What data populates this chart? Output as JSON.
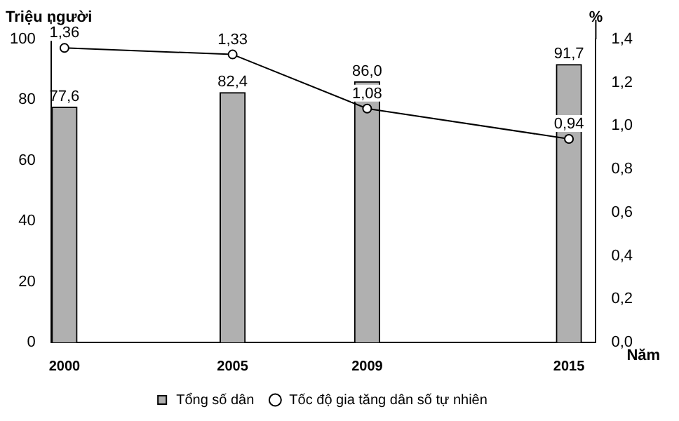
{
  "chart_data": {
    "type": "bar",
    "xlabel": "Năm",
    "ylabel": "Triệu người",
    "y2label": "%",
    "x": [
      2000,
      2005,
      2009,
      2015
    ],
    "xlim": [
      1999.6,
      2015.8
    ],
    "xticks": [
      2000,
      2005,
      2009,
      2015
    ],
    "ylim": [
      0,
      100
    ],
    "yticks": [
      0,
      20,
      40,
      60,
      80,
      100
    ],
    "y2lim": [
      0,
      1.4
    ],
    "y2ticks": [
      {
        "value": 0,
        "label": "0,0"
      },
      {
        "value": 0.2,
        "label": "0,2"
      },
      {
        "value": 0.4,
        "label": "0,4"
      },
      {
        "value": 0.6,
        "label": "0,6"
      },
      {
        "value": 0.8,
        "label": "0,8"
      },
      {
        "value": 1,
        "label": "1,0"
      },
      {
        "value": 1.2,
        "label": "1,2"
      },
      {
        "value": 1.4,
        "label": "1,4"
      }
    ],
    "series": [
      {
        "name": "Tổng số dân",
        "color": "#b0b0b0",
        "values": [
          77.6,
          82.4,
          86.0,
          91.7
        ],
        "value_labels": [
          "77,6",
          "82,4",
          "86,0",
          "91,7"
        ]
      },
      {
        "name": "Tốc độ gia tăng dân số tự nhiên",
        "type": "line",
        "axis": "y2",
        "color": "#000000",
        "marker": "circle",
        "values": [
          1.36,
          1.33,
          1.08,
          0.94
        ],
        "value_labels": [
          "1,36",
          "1,33",
          "1,08",
          "0,94"
        ]
      }
    ],
    "grid": false,
    "legend": "bottom"
  }
}
